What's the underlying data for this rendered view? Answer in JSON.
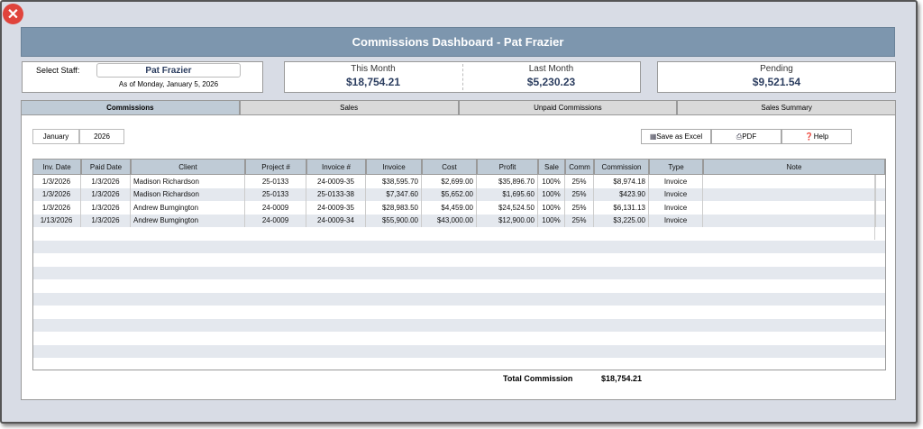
{
  "header": {
    "title": "Commissions Dashboard - Pat Frazier"
  },
  "staff": {
    "label": "Select Staff:",
    "value": "Pat Frazier",
    "as_of": "As of Monday, January 5, 2026"
  },
  "summary": [
    {
      "label": "This Month",
      "value": "$18,754.21"
    },
    {
      "label": "Last Month",
      "value": "$5,230.23"
    },
    {
      "label": "Pending",
      "value": "$9,521.54"
    }
  ],
  "tabs": [
    "Commissions",
    "Sales",
    "Unpaid Commissions",
    "Sales Summary"
  ],
  "filters": {
    "month": "January",
    "year": "2026"
  },
  "buttons": [
    "Save as Excel",
    "PDF",
    "Help"
  ],
  "table": {
    "columns": [
      "Inv. Date",
      "Paid Date",
      "Client",
      "Project #",
      "Invoice #",
      "Invoice",
      "Cost",
      "Profit",
      "Sale",
      "Comm",
      "Commission",
      "Type",
      "Note"
    ],
    "rows": [
      [
        "1/3/2026",
        "1/3/2026",
        "Madison Richardson",
        "25-0133",
        "24-0009-35",
        "$38,595.70",
        "$2,699.00",
        "$35,896.70",
        "100%",
        "25%",
        "$8,974.18",
        "Invoice"
      ],
      [
        "1/3/2026",
        "1/3/2026",
        "Madison Richardson",
        "25-0133",
        "25-0133-38",
        "$7,347.60",
        "$5,652.00",
        "$1,695.60",
        "100%",
        "25%",
        "$423.90",
        "Invoice"
      ],
      [
        "1/3/2026",
        "1/3/2026",
        "Andrew Bumgington",
        "24-0009",
        "24-0009-35",
        "$28,983.50",
        "$4,459.00",
        "$24,524.50",
        "100%",
        "25%",
        "$6,131.13",
        "Invoice"
      ],
      [
        "1/13/2026",
        "1/3/2026",
        "Andrew Bumgington",
        "24-0009",
        "24-0009-34",
        "$55,900.00",
        "$43,000.00",
        "$12,900.00",
        "100%",
        "25%",
        "$3,225.00",
        "Invoice"
      ]
    ]
  },
  "footer": {
    "label": "Total Commission",
    "value": "$18,754.21"
  }
}
